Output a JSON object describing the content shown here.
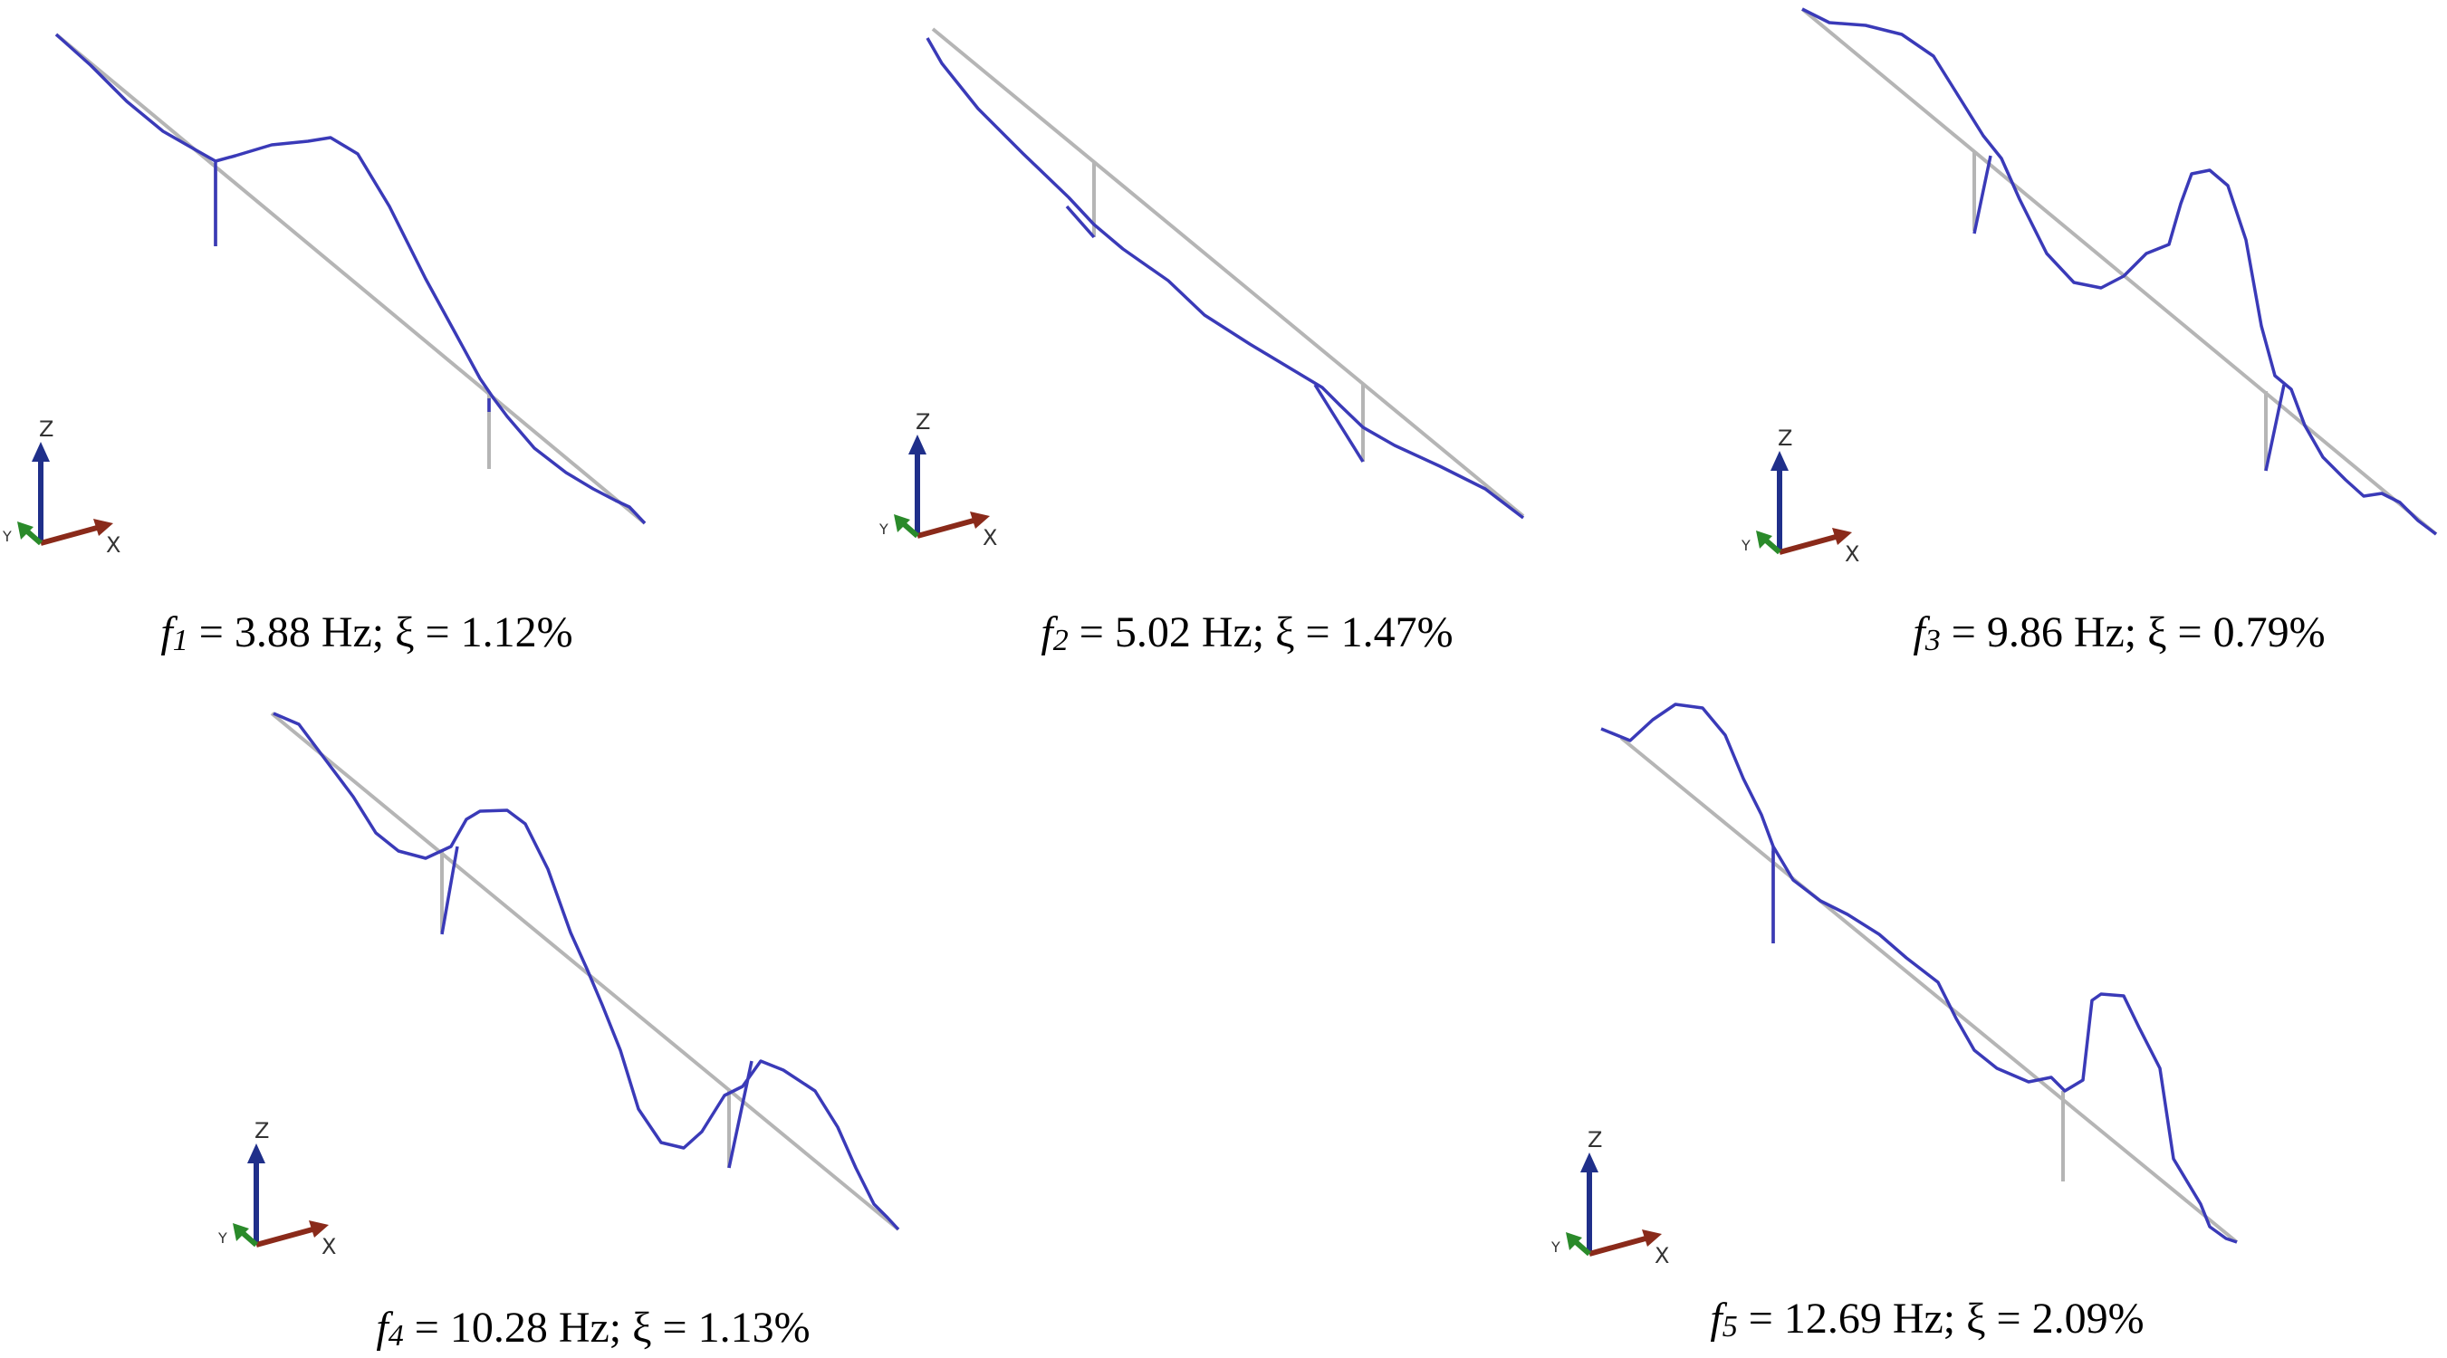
{
  "modes": [
    {
      "id": "mode-1",
      "symbol": "f",
      "index": "1",
      "rest": " = 3.88 Hz; ξ = 1.12%"
    },
    {
      "id": "mode-2",
      "symbol": "f",
      "index": "2",
      "rest": " = 5.02 Hz; ξ = 1.47%"
    },
    {
      "id": "mode-3",
      "symbol": "f",
      "index": "3",
      "rest": " = 9.86 Hz; ξ = 0.79%"
    },
    {
      "id": "mode-4",
      "symbol": "f",
      "index": "4",
      "rest": " = 10.28 Hz; ξ = 1.13%"
    },
    {
      "id": "mode-5",
      "symbol": "f",
      "index": "5",
      "rest": " = 12.69 Hz; ξ = 2.09%"
    }
  ],
  "axes": {
    "z": "Z",
    "x": "X",
    "y": "Y"
  },
  "colors": {
    "mode_shape": "#3a3ab8",
    "undeformed": "#b5b5b5",
    "axis_z": "#1f2f8a",
    "axis_x": "#8a2a1a",
    "axis_y": "#2a8a2a"
  }
}
